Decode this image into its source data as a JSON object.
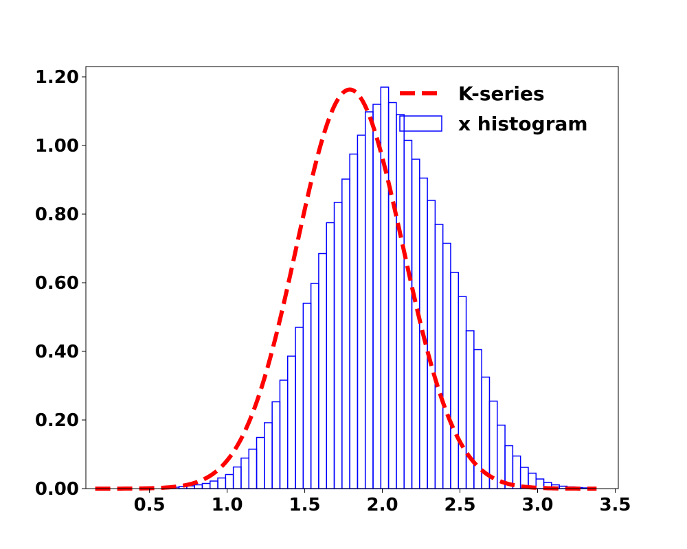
{
  "chart_data": {
    "type": "bar",
    "xlim": [
      0.09,
      3.52
    ],
    "ylim": [
      0,
      1.23
    ],
    "grid": false,
    "legend_position": "top-right",
    "x_ticks": [
      {
        "value": 0.5,
        "label": "0.5"
      },
      {
        "value": 1.0,
        "label": "1.0"
      },
      {
        "value": 1.5,
        "label": "1.5"
      },
      {
        "value": 2.0,
        "label": "2.0"
      },
      {
        "value": 2.5,
        "label": "2.5"
      },
      {
        "value": 3.0,
        "label": "3.0"
      },
      {
        "value": 3.5,
        "label": "3.5"
      }
    ],
    "y_ticks": [
      {
        "value": 0.0,
        "label": "0.00"
      },
      {
        "value": 0.2,
        "label": "0.20"
      },
      {
        "value": 0.4,
        "label": "0.40"
      },
      {
        "value": 0.6,
        "label": "0.60"
      },
      {
        "value": 0.8,
        "label": "0.80"
      },
      {
        "value": 1.0,
        "label": "1.00"
      },
      {
        "value": 1.2,
        "label": "1.20"
      }
    ],
    "series": [
      {
        "name": "K-series",
        "kind": "line",
        "style": "dashed",
        "color": "#ff0000",
        "mean": 1.79,
        "sd": 0.343,
        "x_range": [
          0.15,
          3.38
        ]
      },
      {
        "name": "x histogram",
        "kind": "histogram",
        "color": "#0000ff",
        "bin_start": 0.59,
        "bin_width": 0.05,
        "heights": [
          0.003,
          0.004,
          0.006,
          0.008,
          0.011,
          0.015,
          0.022,
          0.031,
          0.041,
          0.063,
          0.089,
          0.115,
          0.149,
          0.192,
          0.253,
          0.316,
          0.386,
          0.47,
          0.54,
          0.598,
          0.685,
          0.775,
          0.834,
          0.902,
          0.975,
          1.03,
          1.098,
          1.12,
          1.17,
          1.125,
          1.09,
          1.015,
          0.96,
          0.905,
          0.84,
          0.77,
          0.715,
          0.63,
          0.56,
          0.46,
          0.405,
          0.325,
          0.255,
          0.185,
          0.125,
          0.095,
          0.062,
          0.045,
          0.028,
          0.018,
          0.011,
          0.007,
          0.005,
          0.003,
          0.002
        ]
      }
    ]
  }
}
